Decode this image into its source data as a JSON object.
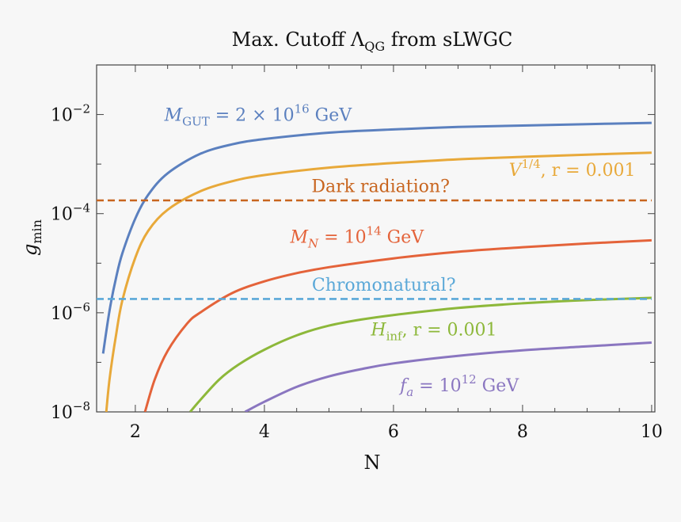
{
  "chart_data": {
    "type": "line",
    "title": "Max. Cutoff Λ_QG from sLWGC",
    "title_parts": {
      "main": "Max. Cutoff Λ",
      "sub": "QG",
      "tail": " from sLWGC"
    },
    "xlabel": "N",
    "ylabel": "g_min",
    "ylabel_parts": {
      "main": "g",
      "sub": "min"
    },
    "xlim": [
      1.4,
      10.05
    ],
    "ylim": [
      1e-08,
      0.1
    ],
    "y_scale": "log",
    "x_ticks": [
      2,
      4,
      6,
      8,
      10
    ],
    "x_tick_labels": [
      "2",
      "4",
      "6",
      "8",
      "10"
    ],
    "y_ticks": [
      1e-08,
      1e-06,
      0.0001,
      0.01
    ],
    "y_tick_labels": [
      {
        "base": "10",
        "exp": "−8"
      },
      {
        "base": "10",
        "exp": "−6"
      },
      {
        "base": "10",
        "exp": "−4"
      },
      {
        "base": "10",
        "exp": "−2"
      }
    ],
    "grid": false,
    "legend": "none",
    "series": [
      {
        "style": "solid",
        "color": "#5b80bf",
        "x": [
          1.5,
          1.6,
          1.7,
          1.8,
          2.0,
          2.2,
          2.5,
          3.0,
          3.5,
          4.0,
          5.0,
          6.0,
          7.0,
          8.0,
          9.0,
          10.0
        ],
        "y": [
          1.5e-07,
          1.1e-06,
          5e-06,
          1.6e-05,
          8e-05,
          0.00024,
          0.00065,
          0.0016,
          0.0025,
          0.0032,
          0.0043,
          0.005,
          0.0056,
          0.006,
          0.0064,
          0.0068
        ]
      },
      {
        "style": "solid",
        "color": "#e8a93a",
        "x": [
          1.55,
          1.6,
          1.7,
          1.8,
          2.0,
          2.2,
          2.5,
          3.0,
          3.5,
          4.0,
          5.0,
          6.0,
          7.0,
          8.0,
          9.0,
          10.0
        ],
        "y": [
          1e-08,
          4.5e-08,
          3.5e-07,
          1.8e-06,
          1.3e-05,
          4.5e-05,
          0.00012,
          0.00028,
          0.00045,
          0.0006,
          0.00085,
          0.00105,
          0.00125,
          0.0014,
          0.00155,
          0.0017
        ]
      },
      {
        "style": "solid",
        "color": "#e4633a",
        "x": [
          2.15,
          2.3,
          2.5,
          2.8,
          3.0,
          3.5,
          4.0,
          4.5,
          5.0,
          6.0,
          7.0,
          8.0,
          9.0,
          10.0
        ],
        "y": [
          1e-08,
          4.5e-08,
          1.7e-07,
          6e-07,
          1e-06,
          2.5e-06,
          4.3e-06,
          6.3e-06,
          8.3e-06,
          1.25e-05,
          1.7e-05,
          2.1e-05,
          2.5e-05,
          2.9e-05
        ]
      },
      {
        "style": "solid",
        "color": "#8db83a",
        "x": [
          2.85,
          3.0,
          3.3,
          3.6,
          4.0,
          4.5,
          5.0,
          5.5,
          6.0,
          7.0,
          8.0,
          9.0,
          10.0
        ],
        "y": [
          1e-08,
          1.7e-08,
          4.5e-08,
          9e-08,
          1.8e-07,
          3.5e-07,
          5.5e-07,
          7.3e-07,
          9e-07,
          1.25e-06,
          1.55e-06,
          1.8e-06,
          2e-06
        ]
      },
      {
        "style": "solid",
        "color": "#8a76c0",
        "x": [
          3.7,
          4.0,
          4.5,
          5.0,
          5.5,
          6.0,
          7.0,
          8.0,
          9.0,
          10.0
        ],
        "y": [
          1e-08,
          1.6e-08,
          3.2e-08,
          5.2e-08,
          7.3e-08,
          9.5e-08,
          1.35e-07,
          1.75e-07,
          2.1e-07,
          2.5e-07
        ]
      },
      {
        "style": "dashed",
        "color": "#c8651f",
        "x": [
          1.4,
          10.0
        ],
        "y": [
          0.000185,
          0.000185
        ]
      },
      {
        "style": "dashed",
        "color": "#5aa8d8",
        "x": [
          1.4,
          10.0
        ],
        "y": [
          1.9e-06,
          1.9e-06
        ]
      }
    ],
    "annotations": [
      {
        "parts": [
          {
            "t": "M",
            "i": true
          },
          {
            "t": "GUT",
            "sub": true
          },
          {
            "t": " = 2 × 10"
          },
          {
            "t": "16",
            "sup": true
          },
          {
            "t": " GeV"
          }
        ],
        "x": 2.45,
        "y": 0.0075,
        "color": "#5b80bf",
        "anchor": "start"
      },
      {
        "parts": [
          {
            "t": "V",
            "i": true
          },
          {
            "t": "1/4",
            "sup": true
          },
          {
            "t": ", r = 0.001"
          }
        ],
        "x": 9.75,
        "y": 0.00058,
        "color": "#e8a93a",
        "anchor": "end"
      },
      {
        "parts": [
          {
            "t": "Dark radiation?"
          }
        ],
        "x": 5.8,
        "y": 0.00027,
        "color": "#c8651f",
        "anchor": "middle"
      },
      {
        "parts": [
          {
            "t": "M",
            "i": true
          },
          {
            "t": "N",
            "sub": true,
            "i": true
          },
          {
            "t": " = 10"
          },
          {
            "t": "14",
            "sup": true
          },
          {
            "t": " GeV"
          }
        ],
        "x": 4.4,
        "y": 2.6e-05,
        "color": "#e4633a",
        "anchor": "start"
      },
      {
        "parts": [
          {
            "t": "Chromonatural?"
          }
        ],
        "x": 5.85,
        "y": 2.8e-06,
        "color": "#5aa8d8",
        "anchor": "middle"
      },
      {
        "parts": [
          {
            "t": "H",
            "i": true
          },
          {
            "t": "inf",
            "sub": true
          },
          {
            "t": ", r = 0.001"
          }
        ],
        "x": 5.65,
        "y": 3.5e-07,
        "color": "#8db83a",
        "anchor": "start"
      },
      {
        "parts": [
          {
            "t": "f",
            "i": true
          },
          {
            "t": "a",
            "sub": true,
            "i": true
          },
          {
            "t": " = 10"
          },
          {
            "t": "12",
            "sup": true
          },
          {
            "t": " GeV"
          }
        ],
        "x": 6.1,
        "y": 2.6e-08,
        "color": "#8a76c0",
        "anchor": "start"
      }
    ]
  }
}
